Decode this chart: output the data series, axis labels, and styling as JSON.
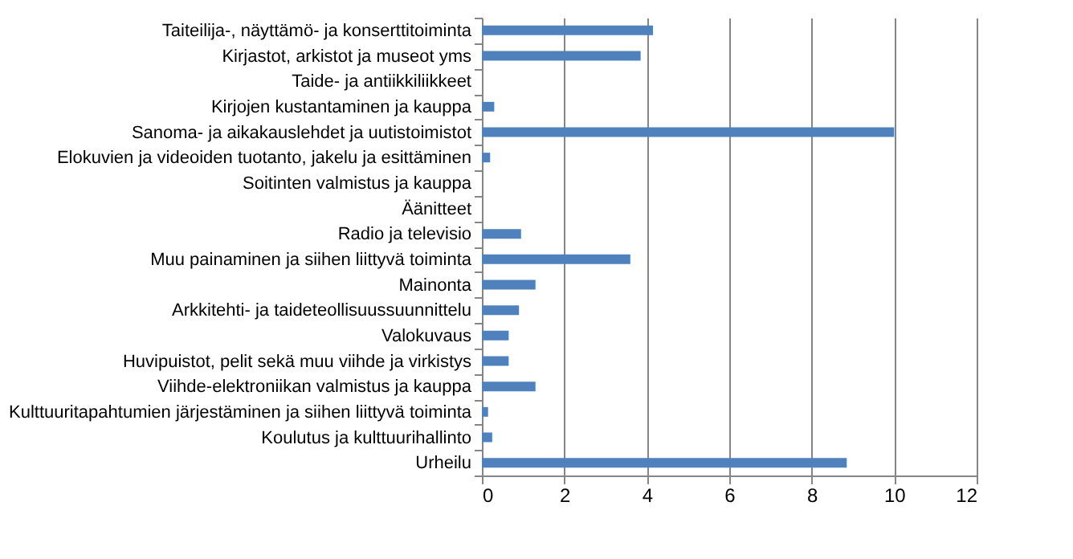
{
  "chart_data": {
    "type": "bar",
    "orientation": "horizontal",
    "categories": [
      "Taiteilija-, näyttämö- ja konserttitoiminta",
      "Kirjastot, arkistot ja museot yms",
      "Taide- ja antiikkiliikkeet",
      "Kirjojen kustantaminen ja kauppa",
      "Sanoma- ja aikakauslehdet ja uutistoimistot",
      "Elokuvien ja videoiden tuotanto, jakelu ja esittäminen",
      "Soitinten valmistus ja kauppa",
      "Äänitteet",
      "Radio ja televisio",
      "Muu painaminen ja siihen liittyvä toiminta",
      "Mainonta",
      "Arkkitehti- ja taideteollisuussuunnittelu",
      "Valokuvaus",
      "Huvipuistot, pelit sekä muu viihde ja virkistys",
      "Viihde-elektroniikan valmistus ja kauppa",
      "Kulttuuritapahtumien järjestäminen ja siihen liittyvä toiminta",
      "Koulutus ja kulttuurihallinto",
      "Urheilu"
    ],
    "values": [
      4.15,
      3.85,
      0,
      0.3,
      10,
      0.2,
      0,
      0,
      0.95,
      3.6,
      1.3,
      0.9,
      0.65,
      0.65,
      1.3,
      0.15,
      0.25,
      8.85
    ],
    "color": "#4f81bd",
    "xlim": [
      0,
      12
    ],
    "xticks": [
      0,
      2,
      4,
      6,
      8,
      10,
      12
    ],
    "grid": "x"
  }
}
